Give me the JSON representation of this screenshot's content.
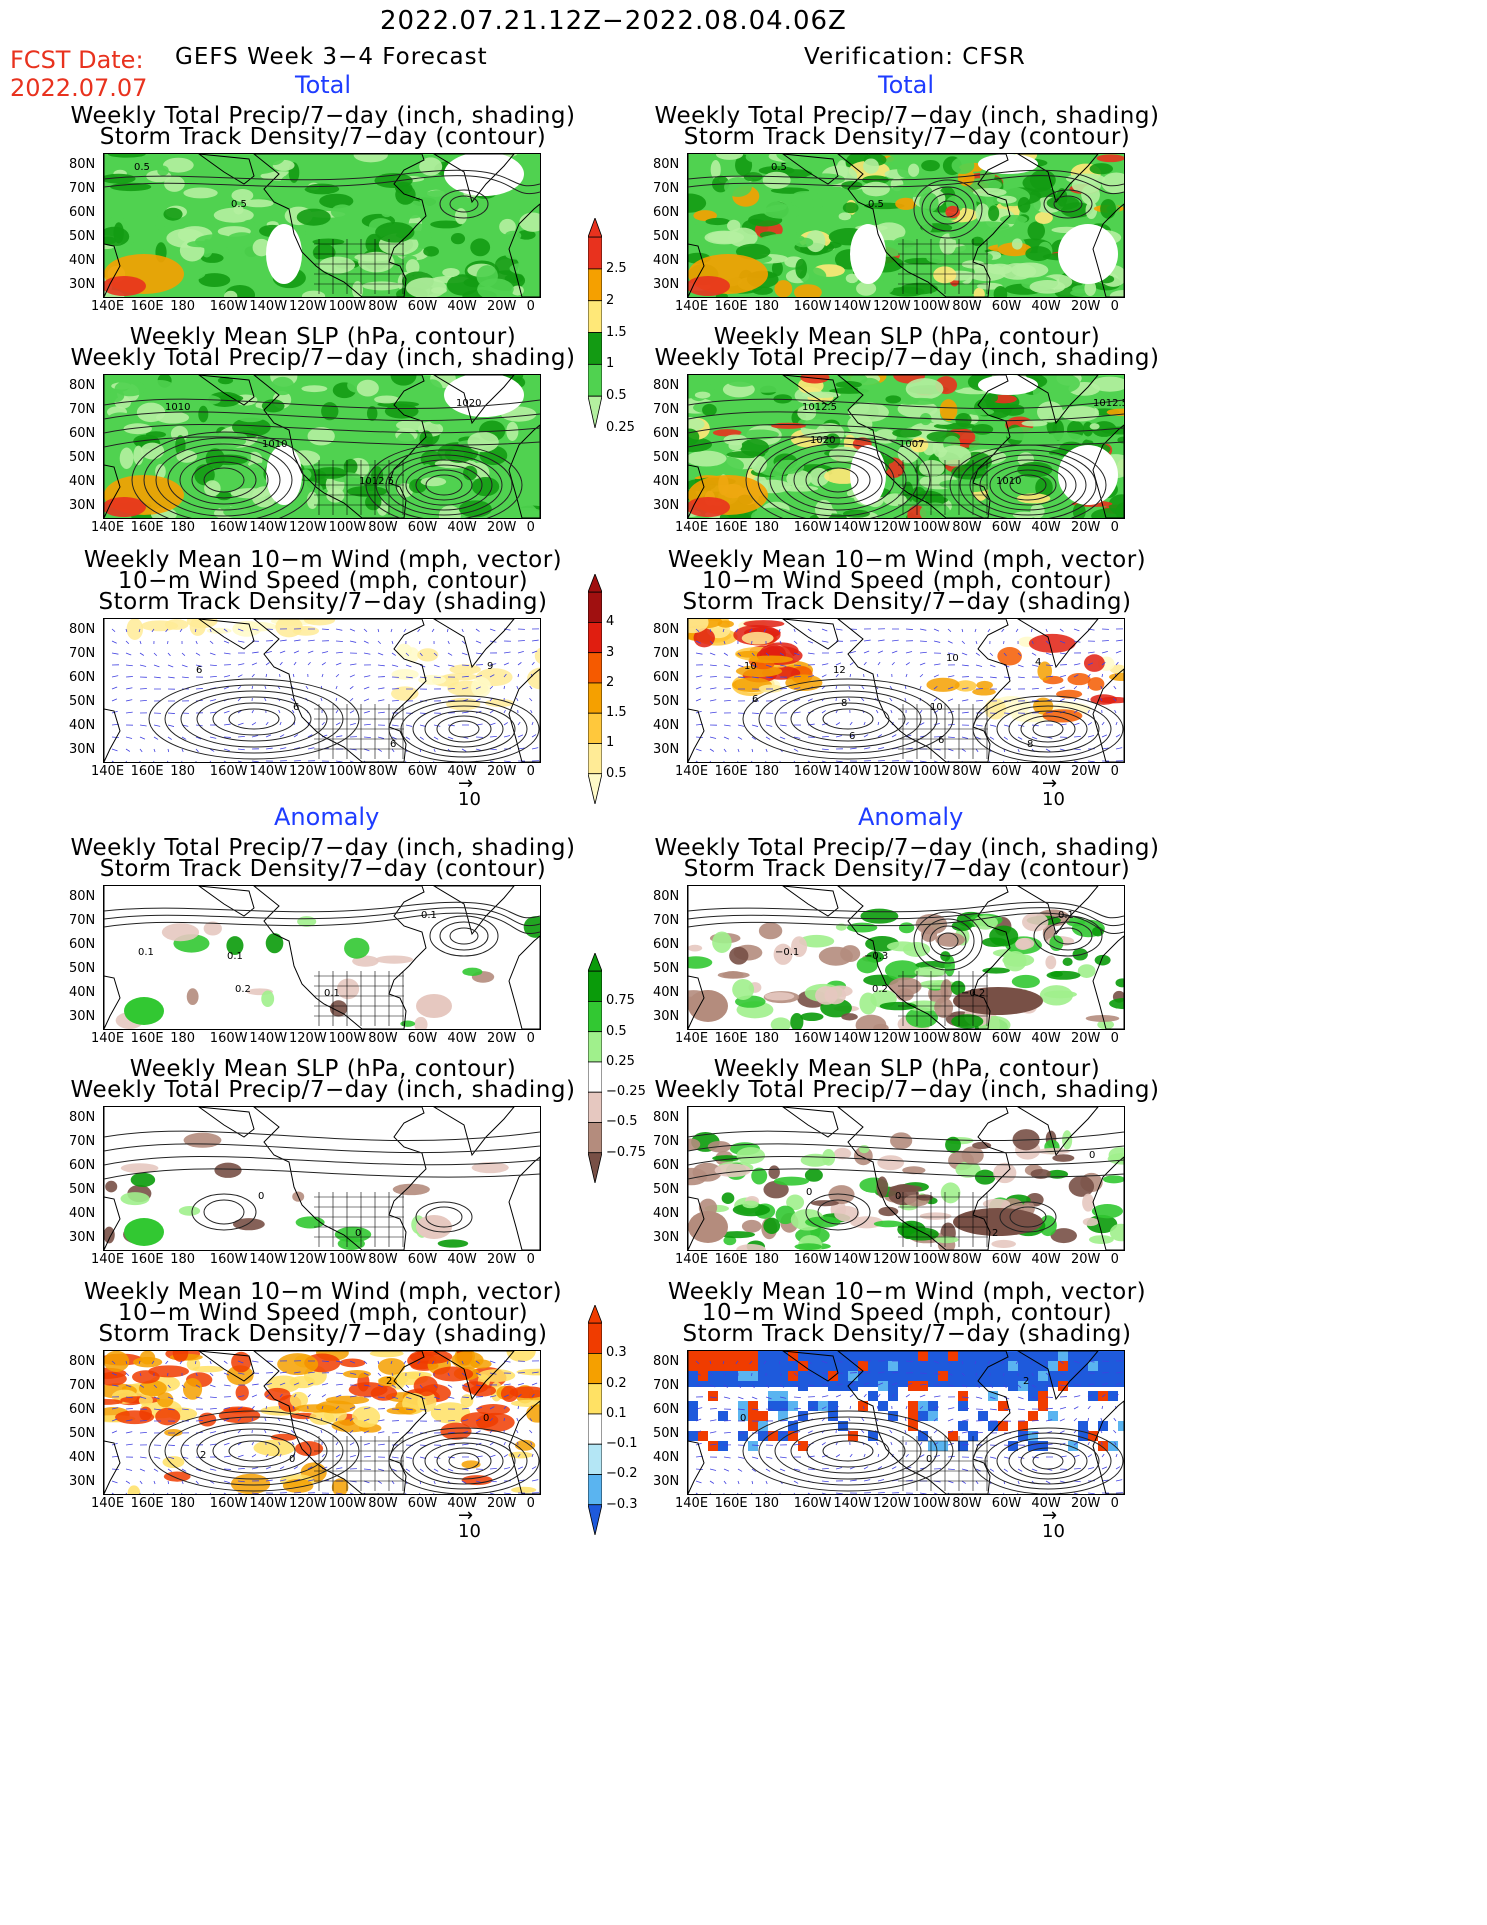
{
  "header": {
    "period": "2022.07.21.12Z−2022.08.04.06Z",
    "fcst_label": "FCST Date:",
    "fcst_date": "2022.07.07",
    "left_title": "GEFS Week 3−4 Forecast",
    "right_title": "Verification: CFSR"
  },
  "sections": {
    "total": "Total",
    "anomaly": "Anomaly"
  },
  "titles": {
    "precip_storm": [
      "Weekly Total Precip/7−day (inch, shading)",
      "Storm Track Density/7−day (contour)"
    ],
    "slp_precip": [
      "Weekly Mean SLP (hPa, contour)",
      "Weekly Total Precip/7−day (inch, shading)"
    ],
    "wind": [
      "Weekly Mean 10−m Wind (mph, vector)",
      "10−m Wind Speed (mph, contour)",
      "Storm Track Density/7−day (shading)"
    ]
  },
  "axes": {
    "lat": [
      "80N",
      "70N",
      "60N",
      "50N",
      "40N",
      "30N"
    ],
    "lon": [
      "140E",
      "160E",
      "180",
      "160W",
      "140W",
      "120W",
      "100W",
      "80W",
      "60W",
      "40W",
      "20W",
      "0"
    ]
  },
  "vector_ref": "10",
  "colorbars": {
    "precip_total": {
      "labels": [
        "2.5",
        "2",
        "1.5",
        "1",
        "0.5",
        "0.25"
      ],
      "colors": [
        "#e8321e",
        "#f5a000",
        "#ffe878",
        "#139b13",
        "#50d250",
        "#b4f0a0"
      ]
    },
    "storm_total": {
      "labels": [
        "4",
        "3",
        "2",
        "1.5",
        "1",
        "0.5"
      ],
      "colors": [
        "#a01010",
        "#e01e10",
        "#f55a00",
        "#f5a000",
        "#ffc83c",
        "#ffeb96",
        "#fffac8"
      ]
    },
    "precip_anom": {
      "labels": [
        "0.75",
        "0.5",
        "0.25",
        "−0.25",
        "−0.5",
        "−0.75"
      ],
      "colors": [
        "#0a9b0a",
        "#32c832",
        "#a0f08c",
        "#ffffff",
        "#e6c8c0",
        "#b48c7d",
        "#785046"
      ]
    },
    "storm_anom": {
      "labels": [
        "0.3",
        "0.2",
        "0.1",
        "−0.1",
        "−0.2",
        "−0.3"
      ],
      "colors": [
        "#f03c00",
        "#f5a000",
        "#ffe164",
        "#ffffff",
        "#b4e6f5",
        "#5ab4f0",
        "#1e5adc"
      ]
    }
  },
  "contour_labels": {
    "f_total_precip": [
      "0.5",
      "0.5"
    ],
    "v_total_precip": [
      "0.5",
      "0.5"
    ],
    "f_total_slp": [
      "1010",
      "1010",
      "1012.5",
      "1020"
    ],
    "v_total_slp": [
      "1012.5",
      "1007",
      "1010",
      "1012.5",
      "1020"
    ],
    "f_total_wind": [
      "6",
      "6",
      "6",
      "9"
    ],
    "v_total_wind": [
      "12",
      "10",
      "8",
      "10",
      "8",
      "6",
      "4",
      "6",
      "6",
      "10"
    ],
    "f_anom_precip": [
      "0.1",
      "0.1",
      "0.1",
      "0.1",
      "0.2"
    ],
    "v_anom_precip": [
      "−0.3",
      "−0.2",
      "0.1",
      "−0.1",
      "0.2"
    ],
    "f_anom_slp": [
      "0",
      "0"
    ],
    "v_anom_slp": [
      "0",
      "2",
      "0",
      "0"
    ],
    "f_anom_wind": [
      "0",
      "2",
      "0",
      "2"
    ],
    "v_anom_wind": [
      "0",
      "2",
      "0"
    ]
  }
}
